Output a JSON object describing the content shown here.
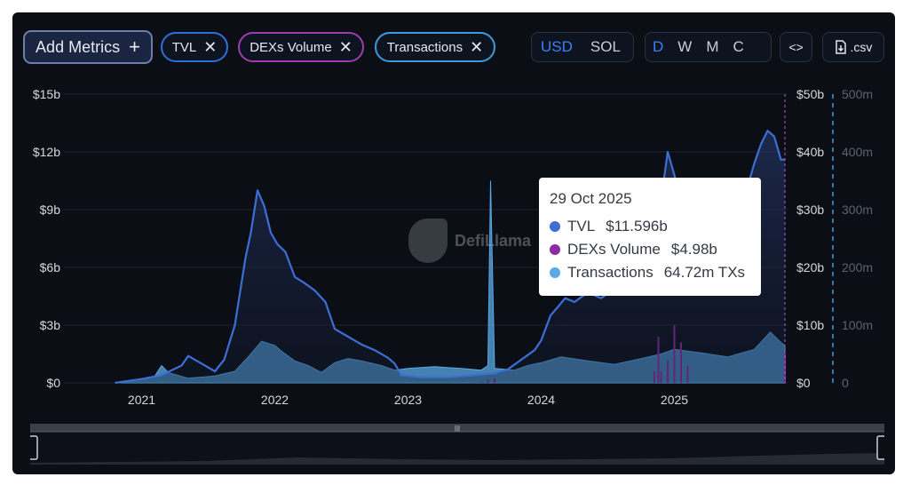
{
  "toolbar": {
    "add_metrics_label": "Add Metrics",
    "add_icon": "+",
    "metric_chips": [
      {
        "label": "TVL",
        "color": "#2f6fdb"
      },
      {
        "label": "DEXs Volume",
        "color": "#9b3fb0"
      },
      {
        "label": "Transactions",
        "color": "#3d9bdc"
      }
    ],
    "close_icon": "✕",
    "currency_options": [
      "USD",
      "SOL"
    ],
    "currency_selected": "USD",
    "interval_options": [
      "D",
      "W",
      "M",
      "C"
    ],
    "interval_selected": "D",
    "embed_icon": "<>",
    "csv_label": ".csv",
    "csv_icon": "file-download-icon"
  },
  "watermark": {
    "text": "DefiLlama"
  },
  "tooltip": {
    "date": "29 Oct 2025",
    "rows": [
      {
        "name": "TVL",
        "value": "$11.596b",
        "color": "#3b6fd6"
      },
      {
        "name": "DEXs Volume",
        "value": "$4.98b",
        "color": "#8e2aa3"
      },
      {
        "name": "Transactions",
        "value": "64.72m TXs",
        "color": "#5aa9e6"
      }
    ]
  },
  "chart_data": {
    "type": "area",
    "x_ticks": [
      "2021",
      "2022",
      "2023",
      "2024",
      "2025"
    ],
    "axes": [
      {
        "side": "left",
        "series": "TVL",
        "ticks": [
          "$15b",
          "$12b",
          "$9b",
          "$6b",
          "$3b",
          "$0"
        ],
        "ylim": [
          0,
          15
        ]
      },
      {
        "side": "right",
        "series": "DEXs Volume",
        "ticks": [
          "$50b",
          "$40b",
          "$30b",
          "$20b",
          "$10b",
          "$0"
        ],
        "ylim": [
          0,
          50
        ]
      },
      {
        "side": "right-outer",
        "series": "Transactions",
        "ticks": [
          "500m",
          "400m",
          "300m",
          "200m",
          "100m",
          "0"
        ],
        "ylim": [
          0,
          500
        ]
      }
    ],
    "series": [
      {
        "name": "TVL",
        "color": "#3b6fd6",
        "unit": "$b",
        "points": [
          [
            2020.8,
            0.0
          ],
          [
            2021.0,
            0.2
          ],
          [
            2021.15,
            0.4
          ],
          [
            2021.3,
            0.9
          ],
          [
            2021.35,
            1.4
          ],
          [
            2021.45,
            1.0
          ],
          [
            2021.55,
            0.6
          ],
          [
            2021.62,
            1.2
          ],
          [
            2021.7,
            3.0
          ],
          [
            2021.78,
            6.5
          ],
          [
            2021.82,
            7.8
          ],
          [
            2021.87,
            10.0
          ],
          [
            2021.92,
            9.2
          ],
          [
            2021.97,
            7.8
          ],
          [
            2022.02,
            7.2
          ],
          [
            2022.08,
            6.8
          ],
          [
            2022.15,
            5.5
          ],
          [
            2022.22,
            5.2
          ],
          [
            2022.3,
            4.8
          ],
          [
            2022.38,
            4.2
          ],
          [
            2022.45,
            2.8
          ],
          [
            2022.55,
            2.4
          ],
          [
            2022.65,
            2.0
          ],
          [
            2022.75,
            1.7
          ],
          [
            2022.85,
            1.3
          ],
          [
            2022.9,
            1.0
          ],
          [
            2022.95,
            0.4
          ],
          [
            2023.1,
            0.3
          ],
          [
            2023.3,
            0.3
          ],
          [
            2023.5,
            0.4
          ],
          [
            2023.65,
            0.5
          ],
          [
            2023.75,
            0.7
          ],
          [
            2023.85,
            1.2
          ],
          [
            2023.95,
            1.7
          ],
          [
            2024.0,
            2.2
          ],
          [
            2024.07,
            3.5
          ],
          [
            2024.12,
            3.9
          ],
          [
            2024.18,
            4.4
          ],
          [
            2024.25,
            4.2
          ],
          [
            2024.35,
            4.7
          ],
          [
            2024.45,
            4.4
          ],
          [
            2024.55,
            4.9
          ],
          [
            2024.65,
            4.7
          ],
          [
            2024.75,
            5.8
          ],
          [
            2024.85,
            8.0
          ],
          [
            2024.92,
            10.5
          ],
          [
            2024.95,
            12.0
          ],
          [
            2025.0,
            10.8
          ],
          [
            2025.08,
            8.0
          ],
          [
            2025.15,
            7.4
          ],
          [
            2025.25,
            7.8
          ],
          [
            2025.35,
            8.6
          ],
          [
            2025.45,
            9.2
          ],
          [
            2025.55,
            10.2
          ],
          [
            2025.6,
            11.4
          ],
          [
            2025.65,
            12.4
          ],
          [
            2025.7,
            13.1
          ],
          [
            2025.75,
            12.8
          ],
          [
            2025.8,
            11.6
          ],
          [
            2025.83,
            11.6
          ]
        ]
      },
      {
        "name": "DEXs Volume",
        "color": "#8e2aa3",
        "unit": "$b",
        "points": [
          [
            2023.55,
            0.2
          ],
          [
            2023.6,
            0.5
          ],
          [
            2023.65,
            0.8
          ],
          [
            2024.85,
            2.0
          ],
          [
            2024.88,
            8.0
          ],
          [
            2024.9,
            2.0
          ],
          [
            2024.95,
            4.0
          ],
          [
            2025.0,
            10.0
          ],
          [
            2025.05,
            7.0
          ],
          [
            2025.1,
            3.0
          ],
          [
            2025.83,
            4.98
          ]
        ]
      },
      {
        "name": "Transactions",
        "color": "#5aa9e6",
        "unit": "m TXs",
        "points": [
          [
            2020.8,
            0
          ],
          [
            2021.0,
            6
          ],
          [
            2021.1,
            12
          ],
          [
            2021.15,
            30
          ],
          [
            2021.2,
            18
          ],
          [
            2021.35,
            8
          ],
          [
            2021.55,
            12
          ],
          [
            2021.7,
            20
          ],
          [
            2021.8,
            45
          ],
          [
            2021.9,
            72
          ],
          [
            2022.0,
            65
          ],
          [
            2022.05,
            55
          ],
          [
            2022.15,
            38
          ],
          [
            2022.25,
            30
          ],
          [
            2022.35,
            18
          ],
          [
            2022.45,
            35
          ],
          [
            2022.55,
            42
          ],
          [
            2022.65,
            38
          ],
          [
            2022.8,
            30
          ],
          [
            2022.9,
            22
          ],
          [
            2023.0,
            25
          ],
          [
            2023.2,
            28
          ],
          [
            2023.4,
            25
          ],
          [
            2023.55,
            22
          ],
          [
            2023.6,
            30
          ],
          [
            2023.62,
            350
          ],
          [
            2023.65,
            25
          ],
          [
            2023.8,
            22
          ],
          [
            2023.9,
            30
          ],
          [
            2024.0,
            35
          ],
          [
            2024.15,
            45
          ],
          [
            2024.35,
            38
          ],
          [
            2024.55,
            32
          ],
          [
            2024.75,
            42
          ],
          [
            2024.9,
            50
          ],
          [
            2025.0,
            58
          ],
          [
            2025.2,
            52
          ],
          [
            2025.4,
            45
          ],
          [
            2025.6,
            58
          ],
          [
            2025.72,
            88
          ],
          [
            2025.8,
            70
          ],
          [
            2025.83,
            64.72
          ]
        ]
      }
    ],
    "x_range": [
      2020.35,
      2025.85
    ],
    "grid": true,
    "legend": "none",
    "crosshair_date": "29 Oct 2025"
  }
}
